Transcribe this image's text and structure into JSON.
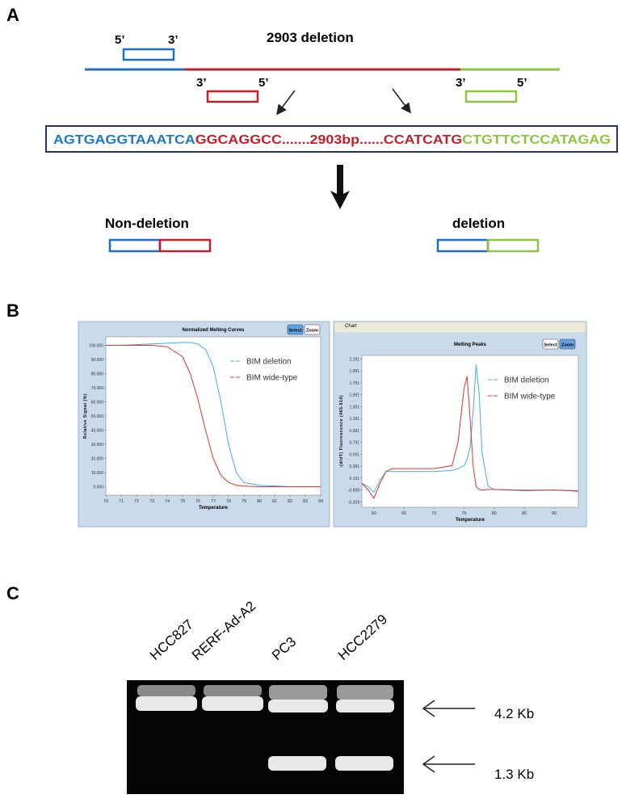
{
  "panel_a": {
    "label": "A",
    "title": "2903 deletion",
    "primers": [
      {
        "left": "5’",
        "right": "3’"
      },
      {
        "left": "3’",
        "right": "5’"
      },
      {
        "left": "3’",
        "right": "5’"
      }
    ],
    "sequence": [
      "AGTGAGGTAAATCA",
      "GGCAGGCC.......2903bp......CCATCATG",
      "CTGTTCTCCATAGAG"
    ],
    "products": [
      "Non-deletion",
      "deletion"
    ]
  },
  "panel_b": {
    "label": "B"
  },
  "chart_data": [
    {
      "type": "line",
      "title": "Normalized Melting Curves",
      "buttons": [
        "Select",
        "Zoom"
      ],
      "x_label": "Temperature",
      "y_label": "Relative Signal (%)",
      "x": [
        70,
        71,
        72,
        73,
        74,
        75,
        75.5,
        76,
        76.5,
        77,
        77.5,
        78,
        78.5,
        79,
        80,
        81,
        82,
        83,
        84
      ],
      "series": [
        {
          "name": "BIM deletion",
          "color": "#3ab0e8",
          "values": [
            100,
            100,
            100.5,
            101,
            101.5,
            102,
            102,
            101,
            97,
            85,
            60,
            30,
            10,
            3,
            1,
            0.5,
            0,
            0,
            0
          ]
        },
        {
          "name": "BIM wide-type",
          "color": "#e03030",
          "values": [
            100,
            100,
            100,
            100,
            99,
            92,
            80,
            62,
            40,
            20,
            8,
            3,
            1,
            0.5,
            0,
            0,
            0,
            0,
            0
          ]
        }
      ],
      "xlim": [
        70,
        84
      ],
      "xticks": [
        70,
        71,
        72,
        73,
        74,
        75,
        76,
        77,
        78,
        79,
        80,
        81,
        82,
        83,
        84
      ],
      "ylim": [
        -6,
        106
      ],
      "yticks": [
        {
          "value": 100,
          "label": "100.000"
        },
        {
          "value": 90,
          "label": "90.000"
        },
        {
          "value": 80,
          "label": "80.000"
        },
        {
          "value": 70,
          "label": "70.000"
        },
        {
          "value": 60,
          "label": "60.000"
        },
        {
          "value": 50,
          "label": "50.000"
        },
        {
          "value": 40,
          "label": "40.000"
        },
        {
          "value": 30,
          "label": "30.000"
        },
        {
          "value": 20,
          "label": "20.000"
        },
        {
          "value": 10,
          "label": "10.000"
        },
        {
          "value": 0,
          "label": "0.000"
        }
      ],
      "legend": "upper right"
    },
    {
      "type": "line",
      "menu": "Chart",
      "title": "Melting Peaks",
      "buttons": [
        "Select",
        "Zoom"
      ],
      "x_label": "Temperature",
      "y_label": "-(d/dT) Fluorescence (465-510)",
      "x": [
        58,
        59,
        60,
        61,
        62,
        63,
        65,
        70,
        73,
        74,
        75,
        75.5,
        76,
        76.5,
        77,
        77.5,
        78,
        79,
        80,
        85,
        90,
        94
      ],
      "series": [
        {
          "name": "BIM deletion",
          "color": "#3ab0e8",
          "values": [
            0.1,
            0.05,
            -0.05,
            0.15,
            0.3,
            0.3,
            0.3,
            0.3,
            0.32,
            0.35,
            0.4,
            0.5,
            0.7,
            1.3,
            2.1,
            1.6,
            0.6,
            0.05,
            0,
            -0.01,
            -0.01,
            -0.02
          ]
        },
        {
          "name": "BIM wide-type",
          "color": "#e03030",
          "values": [
            0.1,
            0,
            -0.15,
            0.1,
            0.3,
            0.35,
            0.35,
            0.35,
            0.4,
            0.8,
            1.7,
            1.9,
            1.2,
            0.4,
            0.05,
            0,
            -0.01,
            0,
            0,
            -0.02,
            -0.01,
            -0.03
          ]
        }
      ],
      "xlim": [
        58,
        94
      ],
      "xticks": [
        60,
        65,
        70,
        75,
        80,
        85,
        90
      ],
      "ylim": [
        -0.3,
        2.25
      ],
      "yticks": [
        2.191,
        1.991,
        1.791,
        1.591,
        1.391,
        1.191,
        0.991,
        0.791,
        0.591,
        0.391,
        0.191,
        -0.009,
        -0.209
      ],
      "legend": "upper right"
    }
  ],
  "panel_c": {
    "label": "C",
    "lanes": [
      "HCC827",
      "RERF-Ad-A2",
      "PC3",
      "HCC2279"
    ],
    "sizes": [
      "4.2 Kb",
      "1.3 Kb"
    ]
  }
}
